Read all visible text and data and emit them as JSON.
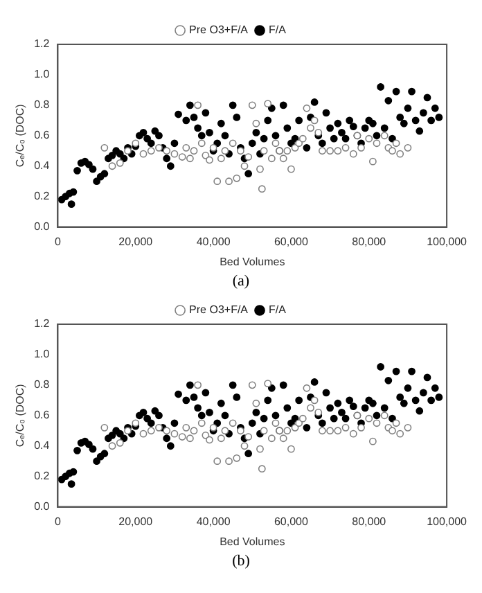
{
  "chart_data": [
    {
      "type": "scatter",
      "xlabel": "Bed Volumes",
      "ylabel": "Cₑ/C₀ (DOC)",
      "annotations": [
        "(a)"
      ],
      "legend": "top",
      "marker": "circle",
      "grid": false,
      "xlim": [
        0,
        100000
      ],
      "xticks": [
        0,
        {
          "value": 20000,
          "label": "20,000"
        },
        {
          "value": 40000,
          "label": "40,000"
        },
        {
          "value": 60000,
          "label": "60,000"
        },
        {
          "value": 80000,
          "label": "80,000"
        },
        {
          "value": 100000,
          "label": "100,000"
        }
      ],
      "ylim": [
        0,
        1.2
      ],
      "yticks": [
        {
          "value": 0,
          "label": "0.0"
        },
        {
          "value": 0.2,
          "label": "0.2"
        },
        {
          "value": 0.4,
          "label": "0.4"
        },
        {
          "value": 0.6,
          "label": "0.6"
        },
        {
          "value": 0.8,
          "label": "0.8"
        },
        {
          "value": 1,
          "label": "1.0"
        },
        {
          "value": 1.2,
          "label": "1.2"
        }
      ],
      "series": [
        {
          "name": "Pre O3+F/A",
          "color": "#808080",
          "x": [
            12000,
            14000,
            16000,
            18000,
            20000,
            22000,
            24000,
            26000,
            28000,
            30000,
            32000,
            33000,
            34000,
            35000,
            36000,
            37000,
            38000,
            39000,
            40000,
            41000,
            42000,
            43000,
            44000,
            45000,
            46000,
            47000,
            48000,
            49000,
            50000,
            51000,
            52000,
            52500,
            53000,
            54000,
            55000,
            56000,
            57000,
            58000,
            59000,
            60000,
            61000,
            62000,
            63000,
            64000,
            65000,
            66000,
            67000,
            68000,
            70000,
            72000,
            74000,
            76000,
            77000,
            78000,
            80000,
            81000,
            82000,
            84000,
            85000,
            86000,
            87000,
            88000,
            90000
          ],
          "values": [
            0.52,
            0.4,
            0.42,
            0.5,
            0.55,
            0.48,
            0.5,
            0.52,
            0.5,
            0.48,
            0.46,
            0.52,
            0.45,
            0.5,
            0.8,
            0.55,
            0.47,
            0.44,
            0.52,
            0.3,
            0.45,
            0.5,
            0.3,
            0.55,
            0.32,
            0.5,
            0.4,
            0.46,
            0.8,
            0.68,
            0.38,
            0.25,
            0.5,
            0.81,
            0.45,
            0.55,
            0.5,
            0.45,
            0.5,
            0.38,
            0.52,
            0.55,
            0.58,
            0.78,
            0.65,
            0.7,
            0.62,
            0.5,
            0.5,
            0.5,
            0.52,
            0.48,
            0.6,
            0.52,
            0.58,
            0.43,
            0.55,
            0.6,
            0.52,
            0.5,
            0.55,
            0.48,
            0.52
          ]
        },
        {
          "name": "F/A",
          "color": "#000000",
          "x": [
            1000,
            2000,
            3000,
            3500,
            4000,
            5000,
            6000,
            7000,
            8000,
            9000,
            10000,
            11000,
            12000,
            13000,
            14000,
            15000,
            16000,
            17000,
            18000,
            19000,
            20000,
            21000,
            22000,
            23000,
            24000,
            25000,
            26000,
            27000,
            28000,
            29000,
            30000,
            31000,
            33000,
            34000,
            35000,
            36000,
            37000,
            38000,
            39000,
            40000,
            41000,
            42000,
            43000,
            44000,
            45000,
            46000,
            47000,
            48000,
            49000,
            50000,
            51000,
            52000,
            53000,
            54000,
            55000,
            56000,
            57000,
            58000,
            59000,
            60000,
            61000,
            62000,
            64000,
            65000,
            66000,
            67000,
            68000,
            69000,
            70000,
            71000,
            72000,
            73000,
            74000,
            75000,
            76000,
            77000,
            78000,
            79000,
            80000,
            81000,
            82000,
            83000,
            84000,
            85000,
            86000,
            87000,
            88000,
            89000,
            90000,
            91000,
            92000,
            93000,
            94000,
            95000,
            96000,
            97000,
            98000
          ],
          "values": [
            0.18,
            0.2,
            0.22,
            0.15,
            0.23,
            0.37,
            0.42,
            0.43,
            0.41,
            0.38,
            0.3,
            0.33,
            0.35,
            0.45,
            0.47,
            0.5,
            0.48,
            0.45,
            0.52,
            0.48,
            0.53,
            0.6,
            0.62,
            0.58,
            0.55,
            0.63,
            0.6,
            0.52,
            0.45,
            0.4,
            0.55,
            0.74,
            0.7,
            0.8,
            0.72,
            0.65,
            0.6,
            0.75,
            0.62,
            0.5,
            0.55,
            0.68,
            0.6,
            0.48,
            0.8,
            0.72,
            0.52,
            0.45,
            0.35,
            0.55,
            0.62,
            0.48,
            0.58,
            0.7,
            0.78,
            0.6,
            0.5,
            0.8,
            0.65,
            0.55,
            0.58,
            0.7,
            0.52,
            0.72,
            0.82,
            0.6,
            0.55,
            0.75,
            0.65,
            0.58,
            0.68,
            0.62,
            0.58,
            0.7,
            0.66,
            0.6,
            0.55,
            0.65,
            0.7,
            0.68,
            0.6,
            0.92,
            0.65,
            0.83,
            0.58,
            0.89,
            0.72,
            0.68,
            0.78,
            0.89,
            0.7,
            0.63,
            0.75,
            0.85,
            0.7,
            0.78,
            0.72
          ]
        }
      ]
    },
    {
      "type": "scatter",
      "xlabel": "Bed Volumes",
      "ylabel": "Cₑ/C₀ (DOC)",
      "annotations": [
        "(b)"
      ],
      "legend": "top",
      "marker": "circle",
      "grid": false,
      "xlim": [
        0,
        100000
      ],
      "xticks": [
        0,
        {
          "value": 20000,
          "label": "20,000"
        },
        {
          "value": 40000,
          "label": "40,000"
        },
        {
          "value": 60000,
          "label": "60,000"
        },
        {
          "value": 80000,
          "label": "80,000"
        },
        {
          "value": 100000,
          "label": "100,000"
        }
      ],
      "ylim": [
        0,
        1.2
      ],
      "yticks": [
        {
          "value": 0,
          "label": "0.0"
        },
        {
          "value": 0.2,
          "label": "0.2"
        },
        {
          "value": 0.4,
          "label": "0.4"
        },
        {
          "value": 0.6,
          "label": "0.6"
        },
        {
          "value": 0.8,
          "label": "0.8"
        },
        {
          "value": 1,
          "label": "1.0"
        },
        {
          "value": 1.2,
          "label": "1.2"
        }
      ],
      "series": [
        {
          "name": "Pre O3+F/A",
          "color": "#808080",
          "x": [
            12000,
            14000,
            16000,
            18000,
            20000,
            22000,
            24000,
            26000,
            28000,
            30000,
            32000,
            33000,
            34000,
            35000,
            36000,
            37000,
            38000,
            39000,
            40000,
            41000,
            42000,
            43000,
            44000,
            45000,
            46000,
            47000,
            48000,
            49000,
            50000,
            51000,
            52000,
            52500,
            53000,
            54000,
            55000,
            56000,
            57000,
            58000,
            59000,
            60000,
            61000,
            62000,
            63000,
            64000,
            65000,
            66000,
            67000,
            68000,
            70000,
            72000,
            74000,
            76000,
            77000,
            78000,
            80000,
            81000,
            82000,
            84000,
            85000,
            86000,
            87000,
            88000,
            90000
          ],
          "values": [
            0.52,
            0.4,
            0.42,
            0.5,
            0.55,
            0.48,
            0.5,
            0.52,
            0.5,
            0.48,
            0.46,
            0.52,
            0.45,
            0.5,
            0.8,
            0.55,
            0.47,
            0.44,
            0.52,
            0.3,
            0.45,
            0.5,
            0.3,
            0.55,
            0.32,
            0.5,
            0.4,
            0.46,
            0.8,
            0.68,
            0.38,
            0.25,
            0.5,
            0.81,
            0.45,
            0.55,
            0.5,
            0.45,
            0.5,
            0.38,
            0.52,
            0.55,
            0.58,
            0.78,
            0.65,
            0.7,
            0.62,
            0.5,
            0.5,
            0.5,
            0.52,
            0.48,
            0.6,
            0.52,
            0.58,
            0.43,
            0.55,
            0.6,
            0.52,
            0.5,
            0.55,
            0.48,
            0.52
          ]
        },
        {
          "name": "F/A",
          "color": "#000000",
          "x": [
            1000,
            2000,
            3000,
            3500,
            4000,
            5000,
            6000,
            7000,
            8000,
            9000,
            10000,
            11000,
            12000,
            13000,
            14000,
            15000,
            16000,
            17000,
            18000,
            19000,
            20000,
            21000,
            22000,
            23000,
            24000,
            25000,
            26000,
            27000,
            28000,
            29000,
            30000,
            31000,
            33000,
            34000,
            35000,
            36000,
            37000,
            38000,
            39000,
            40000,
            41000,
            42000,
            43000,
            44000,
            45000,
            46000,
            47000,
            48000,
            49000,
            50000,
            51000,
            52000,
            53000,
            54000,
            55000,
            56000,
            57000,
            58000,
            59000,
            60000,
            61000,
            62000,
            64000,
            65000,
            66000,
            67000,
            68000,
            69000,
            70000,
            71000,
            72000,
            73000,
            74000,
            75000,
            76000,
            77000,
            78000,
            79000,
            80000,
            81000,
            82000,
            83000,
            84000,
            85000,
            86000,
            87000,
            88000,
            89000,
            90000,
            91000,
            92000,
            93000,
            94000,
            95000,
            96000,
            97000,
            98000
          ],
          "values": [
            0.18,
            0.2,
            0.22,
            0.15,
            0.23,
            0.37,
            0.42,
            0.43,
            0.41,
            0.38,
            0.3,
            0.33,
            0.35,
            0.45,
            0.47,
            0.5,
            0.48,
            0.45,
            0.52,
            0.48,
            0.53,
            0.6,
            0.62,
            0.58,
            0.55,
            0.63,
            0.6,
            0.52,
            0.45,
            0.4,
            0.55,
            0.74,
            0.7,
            0.8,
            0.72,
            0.65,
            0.6,
            0.75,
            0.62,
            0.5,
            0.55,
            0.68,
            0.6,
            0.48,
            0.8,
            0.72,
            0.52,
            0.45,
            0.35,
            0.55,
            0.62,
            0.48,
            0.58,
            0.7,
            0.78,
            0.6,
            0.5,
            0.8,
            0.65,
            0.55,
            0.58,
            0.7,
            0.52,
            0.72,
            0.82,
            0.6,
            0.55,
            0.75,
            0.65,
            0.58,
            0.68,
            0.62,
            0.58,
            0.7,
            0.66,
            0.6,
            0.55,
            0.65,
            0.7,
            0.68,
            0.6,
            0.92,
            0.65,
            0.83,
            0.58,
            0.89,
            0.72,
            0.68,
            0.78,
            0.89,
            0.7,
            0.63,
            0.75,
            0.85,
            0.7,
            0.78,
            0.72
          ]
        }
      ]
    }
  ]
}
